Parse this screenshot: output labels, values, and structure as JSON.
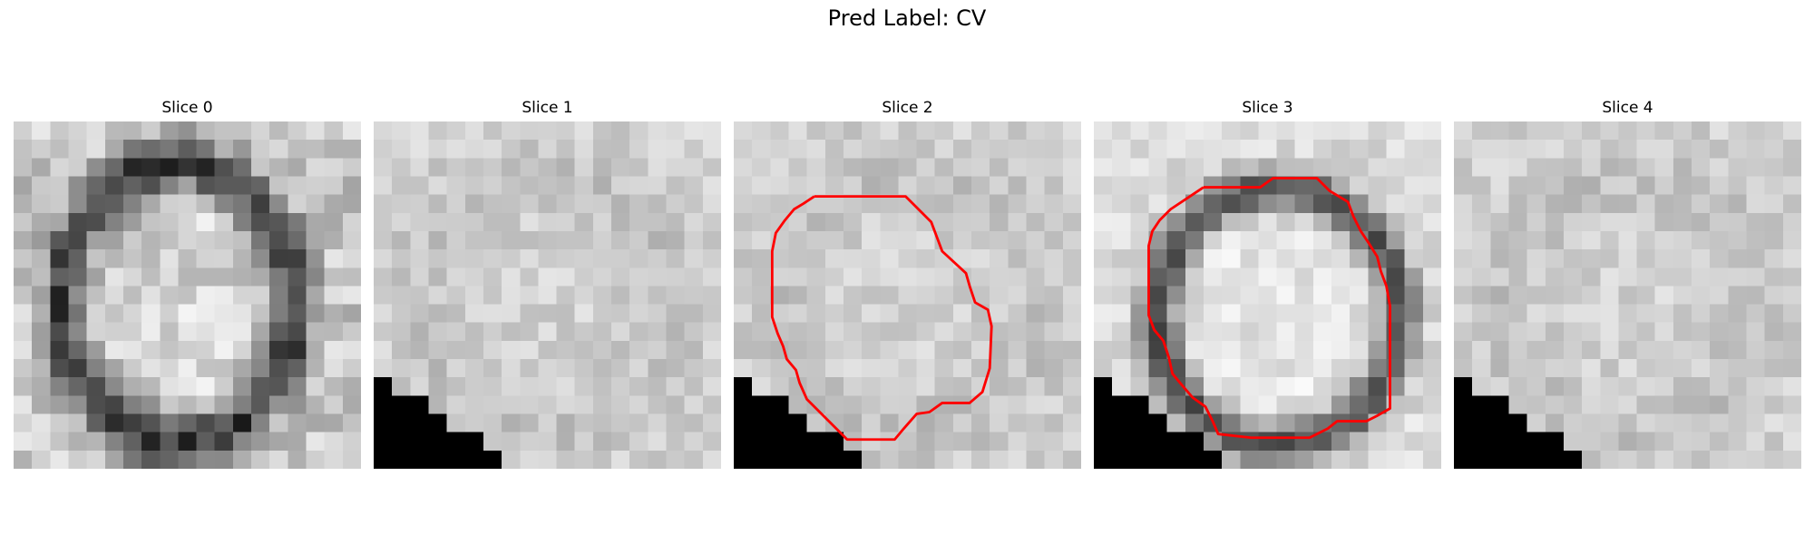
{
  "figure": {
    "title": "Pred Label: CV"
  },
  "colors": {
    "contour": "#ff0000",
    "mask": "#000000"
  },
  "panels": [
    {
      "title": "Slice 0",
      "style": "ring",
      "mask": [],
      "contour": []
    },
    {
      "title": "Slice 1",
      "style": "bright",
      "mask": [
        [
          0,
          14
        ],
        [
          1,
          14
        ],
        [
          1,
          15
        ],
        [
          3,
          15
        ],
        [
          3,
          16
        ],
        [
          4,
          16
        ],
        [
          4,
          17
        ],
        [
          6,
          17
        ],
        [
          6,
          18
        ],
        [
          7,
          18
        ],
        [
          7,
          19
        ],
        [
          12,
          19
        ],
        [
          12,
          20
        ],
        [
          14,
          20
        ],
        [
          14,
          21
        ],
        [
          16,
          21
        ],
        [
          16,
          22
        ],
        [
          18,
          22
        ],
        [
          18,
          23
        ],
        [
          18,
          23
        ]
      ],
      "contour": []
    },
    {
      "title": "Slice 2",
      "style": "bright",
      "mask": [
        [
          0,
          14
        ],
        [
          1,
          14
        ],
        [
          1,
          15
        ],
        [
          3,
          15
        ],
        [
          3,
          16
        ],
        [
          4,
          16
        ],
        [
          4,
          17
        ],
        [
          6,
          17
        ],
        [
          6,
          18
        ],
        [
          7,
          18
        ],
        [
          7,
          19
        ],
        [
          12,
          19
        ],
        [
          12,
          20
        ],
        [
          14,
          20
        ],
        [
          14,
          21
        ],
        [
          16,
          21
        ],
        [
          16,
          22
        ],
        [
          18,
          22
        ],
        [
          18,
          23
        ]
      ],
      "contour": [
        [
          4.4,
          4.1
        ],
        [
          9.4,
          4.1
        ],
        [
          10.8,
          5.5
        ],
        [
          11.1,
          6.3
        ],
        [
          11.4,
          7.1
        ],
        [
          12.7,
          8.3
        ],
        [
          12.9,
          9.0
        ],
        [
          13.2,
          9.9
        ],
        [
          13.9,
          10.3
        ],
        [
          14.1,
          11.2
        ],
        [
          14.0,
          13.5
        ],
        [
          13.6,
          14.8
        ],
        [
          12.9,
          15.4
        ],
        [
          11.4,
          15.4
        ],
        [
          10.7,
          15.9
        ],
        [
          10.0,
          16.0
        ],
        [
          9.3,
          16.8
        ],
        [
          8.8,
          17.4
        ],
        [
          6.2,
          17.4
        ],
        [
          5.7,
          16.9
        ],
        [
          4.8,
          16.0
        ],
        [
          4.0,
          15.2
        ],
        [
          3.6,
          14.3
        ],
        [
          3.4,
          13.6
        ],
        [
          2.9,
          13.0
        ],
        [
          2.7,
          12.3
        ],
        [
          2.4,
          11.6
        ],
        [
          2.1,
          10.7
        ],
        [
          2.1,
          7.1
        ],
        [
          2.3,
          6.1
        ],
        [
          2.8,
          5.4
        ],
        [
          3.3,
          4.8
        ],
        [
          3.8,
          4.5
        ],
        [
          4.4,
          4.1
        ]
      ]
    },
    {
      "title": "Slice 3",
      "style": "halo",
      "mask": [
        [
          0,
          14
        ],
        [
          1,
          14
        ],
        [
          1,
          15
        ],
        [
          3,
          15
        ],
        [
          3,
          16
        ],
        [
          4,
          16
        ],
        [
          4,
          17
        ],
        [
          6,
          17
        ],
        [
          6,
          18
        ],
        [
          7,
          18
        ],
        [
          7,
          19
        ],
        [
          12,
          19
        ],
        [
          12,
          20
        ],
        [
          14,
          20
        ],
        [
          14,
          21
        ],
        [
          16,
          21
        ],
        [
          16,
          22
        ],
        [
          18,
          22
        ],
        [
          18,
          23
        ]
      ],
      "contour": [
        [
          6.0,
          3.6
        ],
        [
          9.1,
          3.6
        ],
        [
          9.8,
          3.1
        ],
        [
          12.2,
          3.1
        ],
        [
          12.9,
          3.8
        ],
        [
          13.9,
          4.4
        ],
        [
          14.2,
          5.2
        ],
        [
          14.6,
          6.0
        ],
        [
          15.0,
          6.6
        ],
        [
          15.5,
          7.4
        ],
        [
          15.7,
          8.2
        ],
        [
          16.0,
          9.0
        ],
        [
          16.2,
          10.1
        ],
        [
          16.2,
          12.2
        ],
        [
          16.2,
          14.6
        ],
        [
          16.2,
          15.7
        ],
        [
          15.5,
          16.1
        ],
        [
          14.9,
          16.4
        ],
        [
          13.3,
          16.4
        ],
        [
          12.8,
          16.8
        ],
        [
          11.8,
          17.3
        ],
        [
          9.9,
          17.3
        ],
        [
          8.6,
          17.3
        ],
        [
          6.8,
          17.1
        ],
        [
          6.5,
          16.4
        ],
        [
          6.1,
          15.6
        ],
        [
          5.4,
          15.1
        ],
        [
          4.8,
          14.4
        ],
        [
          4.3,
          13.8
        ],
        [
          4.1,
          12.9
        ],
        [
          3.8,
          12.0
        ],
        [
          3.3,
          11.4
        ],
        [
          3.0,
          10.6
        ],
        [
          3.0,
          8.5
        ],
        [
          3.0,
          6.8
        ],
        [
          3.2,
          6.0
        ],
        [
          3.6,
          5.4
        ],
        [
          4.2,
          4.8
        ],
        [
          5.1,
          4.2
        ],
        [
          6.0,
          3.6
        ]
      ]
    },
    {
      "title": "Slice 4",
      "style": "bright",
      "mask": [
        [
          0,
          14
        ],
        [
          1,
          14
        ],
        [
          1,
          15
        ],
        [
          3,
          15
        ],
        [
          3,
          16
        ],
        [
          4,
          16
        ],
        [
          4,
          17
        ],
        [
          6,
          17
        ],
        [
          6,
          18
        ],
        [
          7,
          18
        ],
        [
          7,
          19
        ],
        [
          12,
          19
        ],
        [
          12,
          20
        ],
        [
          14,
          20
        ],
        [
          14,
          21
        ],
        [
          16,
          21
        ],
        [
          16,
          22
        ],
        [
          18,
          22
        ],
        [
          18,
          23
        ]
      ],
      "contour": []
    }
  ]
}
